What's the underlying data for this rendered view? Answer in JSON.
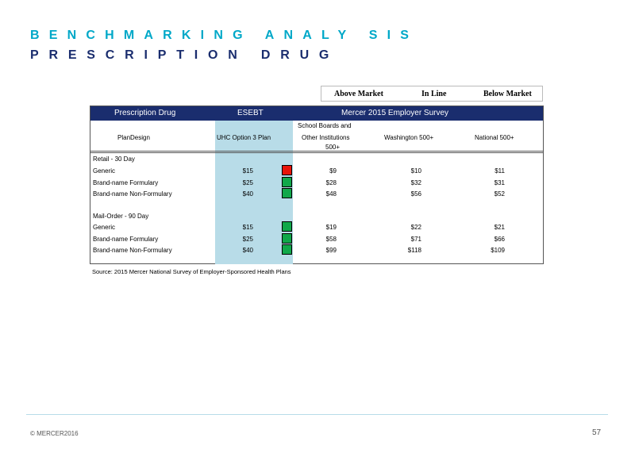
{
  "title": {
    "line1": "BENCHMARKING ANALY SIS",
    "line2": "PRESCRIPTION DRUG"
  },
  "legend": {
    "above": "Above   Market",
    "inline": "In  Line",
    "below": "Below   Market"
  },
  "table": {
    "header": {
      "left": "Prescription          Drug",
      "middle": "ESEBT",
      "right": "Mercer     2015    Employer      Survey"
    },
    "columns": {
      "plan_design": "PlanDesign",
      "uhc": "UHC    Option     3  Plan",
      "school_line1": "School      Boards       and",
      "school_line2": "Other    Institutions",
      "school_line3": "500+",
      "washington": "Washington          500+",
      "national": "National        500+"
    },
    "sections": [
      {
        "label": "Retail     - 30   Day",
        "rows": [
          {
            "label": "Generic",
            "uhc": "$15",
            "indicator": "above",
            "school": "$9",
            "washington": "$10",
            "national": "$11"
          },
          {
            "label": "Brand-name        Formulary",
            "uhc": "$25",
            "indicator": "inline",
            "school": "$28",
            "washington": "$32",
            "national": "$31"
          },
          {
            "label": "Brand-name        Non-Formulary",
            "uhc": "$40",
            "indicator": "inline",
            "school": "$48",
            "washington": "$56",
            "national": "$52"
          }
        ]
      },
      {
        "label": "Mail-Order        - 90   Day",
        "rows": [
          {
            "label": "Generic",
            "uhc": "$15",
            "indicator": "inline",
            "school": "$19",
            "washington": "$22",
            "national": "$21"
          },
          {
            "label": "Brand-name        Formulary",
            "uhc": "$25",
            "indicator": "inline",
            "school": "$58",
            "washington": "$71",
            "national": "$66"
          },
          {
            "label": "Brand-name        Non-Formulary",
            "uhc": "$40",
            "indicator": "inline",
            "school": "$99",
            "washington": "$118",
            "national": "$109"
          }
        ]
      }
    ]
  },
  "indicator_colors": {
    "above": "#e8140a",
    "inline": "#10a84a"
  },
  "source": "Source:       2015     Mercer      National       Survey       of    Employer-Sponsored                  Health       Plans",
  "footer": {
    "copyright": "© MERCER2016",
    "page": "57"
  }
}
